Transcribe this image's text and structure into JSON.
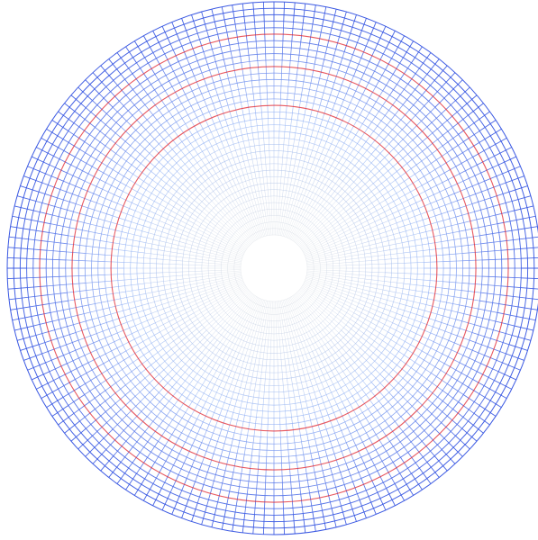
{
  "diagram": {
    "type": "polar-grid-mesh",
    "grid": {
      "radial_ring_count": 36,
      "angular_spoke_count": 160,
      "inner_to_outer_radius_ratio": 0.125
    },
    "colors": {
      "background": "#ffffff",
      "inner_line": "#c9cfd6",
      "mid_line": "#8fb0f5",
      "outer_line": "#2f4fe0",
      "highlight_ring": "#e0202a"
    },
    "highlight_ring_indices": [
      20,
      26,
      31
    ]
  }
}
